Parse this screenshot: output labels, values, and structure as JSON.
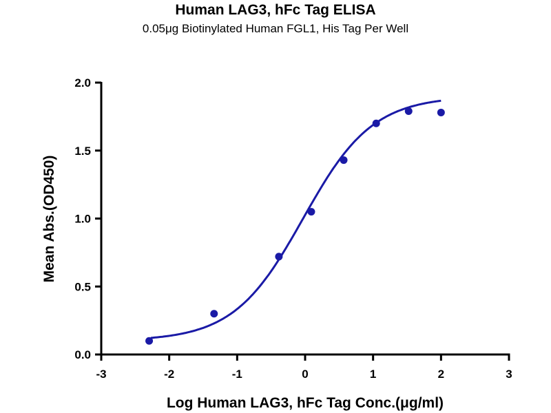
{
  "chart_data": {
    "type": "scatter",
    "title": "Human LAG3, hFc Tag ELISA",
    "subtitle": "0.05μg Biotinylated Human FGL1, His Tag Per Well",
    "xlabel": "Log Human LAG3, hFc Tag Conc.(μg/ml)",
    "ylabel": "Mean Abs.(OD450)",
    "xlim": [
      -3,
      3
    ],
    "ylim": [
      0,
      2.0
    ],
    "x_ticks": [
      "-3",
      "-2",
      "-1",
      "0",
      "1",
      "2",
      "3"
    ],
    "y_ticks": [
      "0.0",
      "0.5",
      "1.0",
      "1.5",
      "2.0"
    ],
    "grid": false,
    "series": [
      {
        "x": [
          -2.295,
          -1.34,
          -0.386,
          0.091,
          0.568,
          1.046,
          1.523,
          2.0
        ],
        "y": [
          0.1,
          0.3,
          0.72,
          1.05,
          1.43,
          1.7,
          1.79,
          1.78
        ],
        "color": "#1a1aa6"
      }
    ],
    "fit_curve": {
      "model": "4PL",
      "bottom": 0.1,
      "top": 1.9,
      "log_ec50": -0.03,
      "hill_slope": 0.85,
      "x_range": [
        -2.27,
        2.0
      ],
      "color": "#1a1aa6"
    }
  }
}
